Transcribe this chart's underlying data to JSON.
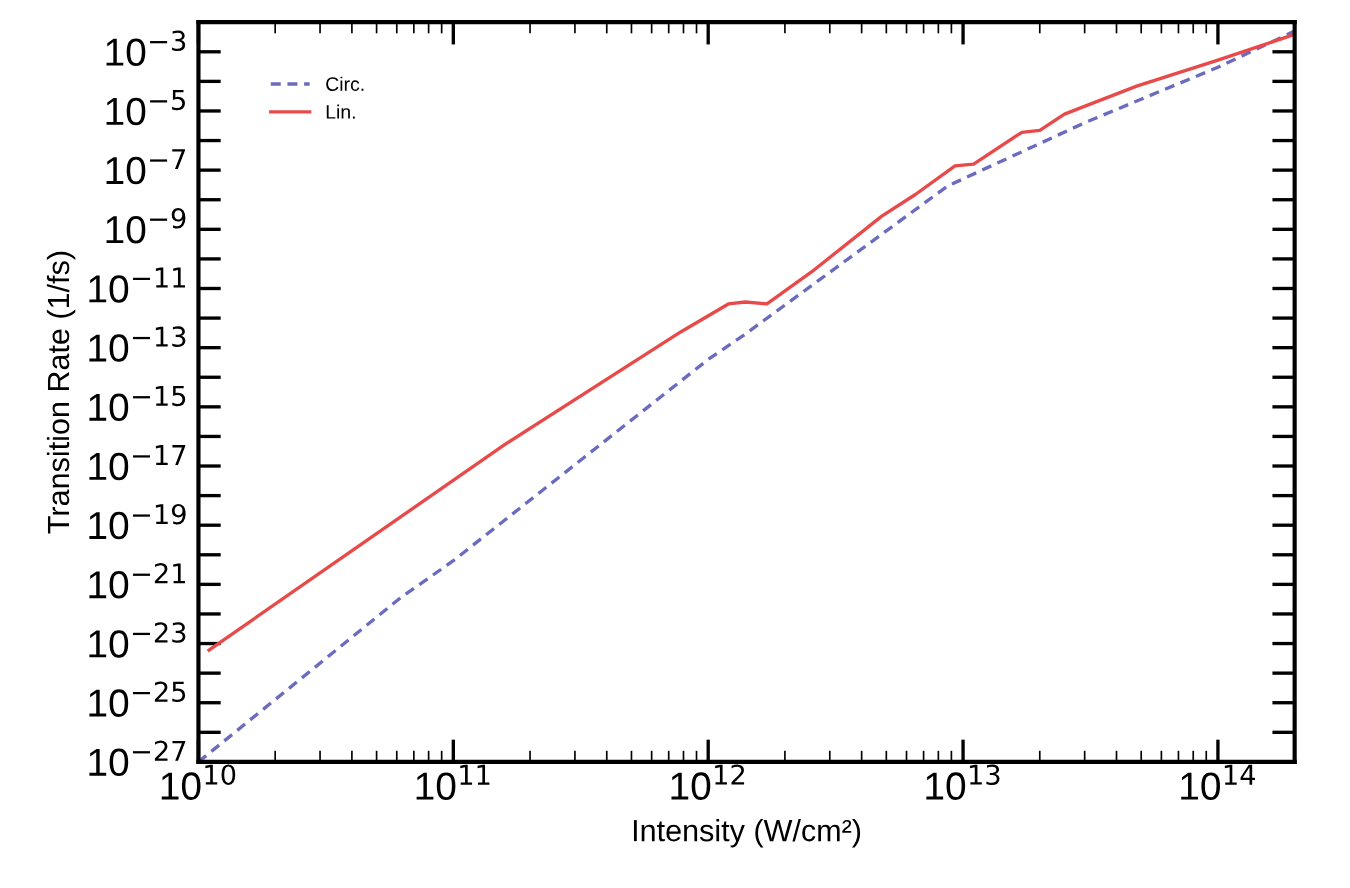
{
  "chart_data": {
    "type": "line",
    "xlabel": "Intensity (W/cm²)",
    "ylabel": "Transition Rate (1/fs)",
    "log": "xy",
    "grid": false,
    "legend": "top left",
    "marker": "none",
    "xlim": [
      10000000000.0,
      200000000000000.0
    ],
    "ylim": [
      1e-27,
      0.01
    ],
    "xticks": [
      {
        "value": 10000000000.0,
        "label": "10$^{10}$"
      },
      {
        "value": 100000000000.0,
        "label": "10$^{11}$"
      },
      {
        "value": 1000000000000.0,
        "label": "10$^{12}$"
      },
      {
        "value": 10000000000000.0,
        "label": "10$^{13}$"
      },
      {
        "value": 100000000000000.0,
        "label": "10$^{14}$"
      }
    ],
    "yticks": [
      {
        "value": 1e-27,
        "label": "10$^{−27}$"
      },
      {
        "value": 1e-26,
        "label": null
      },
      {
        "value": 1e-25,
        "label": "10$^{−25}$"
      },
      {
        "value": 1e-24,
        "label": null
      },
      {
        "value": 1e-23,
        "label": "10$^{−23}$"
      },
      {
        "value": 1e-22,
        "label": null
      },
      {
        "value": 1e-21,
        "label": "10$^{−21}$"
      },
      {
        "value": 1e-20,
        "label": null
      },
      {
        "value": 1e-19,
        "label": "10$^{−19}$"
      },
      {
        "value": 1e-18,
        "label": null
      },
      {
        "value": 1e-17,
        "label": "10$^{−17}$"
      },
      {
        "value": 1e-16,
        "label": null
      },
      {
        "value": 1e-15,
        "label": "10$^{−15}$"
      },
      {
        "value": 1e-14,
        "label": null
      },
      {
        "value": 1e-13,
        "label": "10$^{−13}$"
      },
      {
        "value": 1e-12,
        "label": null
      },
      {
        "value": 1e-11,
        "label": "10$^{−11}$"
      },
      {
        "value": 1e-10,
        "label": null
      },
      {
        "value": 1e-09,
        "label": "10$^{−9}$"
      },
      {
        "value": 1e-08,
        "label": null
      },
      {
        "value": 1e-07,
        "label": "10$^{−7}$"
      },
      {
        "value": 1e-06,
        "label": null
      },
      {
        "value": 1e-05,
        "label": "10$^{−5}$"
      },
      {
        "value": 0.0001,
        "label": null
      },
      {
        "value": 0.001,
        "label": "10$^{−3}$"
      },
      {
        "value": 0.01,
        "label": null
      }
    ],
    "series": [
      {
        "name": "Circ.",
        "color": "#6b6bc0",
        "line_style": "dashed",
        "x": [
          10000000000.0,
          62000000000.0,
          100000000000.0,
          1000000000000.0,
          1400000000000.0,
          8700000000000.0,
          30000000000000.0,
          100000000000000.0,
          200000000000000.0
        ],
        "values": [
          1e-27,
          3.5e-22,
          6.3e-21,
          4e-14,
          2.9e-13,
          2.9e-08,
          4e-06,
          0.0003,
          0.005
        ]
      },
      {
        "name": "Lin.",
        "color": "#e84a4a",
        "line_style": "solid",
        "x": [
          11000000000.0,
          160000000000.0,
          780000000000.0,
          1200000000000.0,
          1400000000000.0,
          1700000000000.0,
          2600000000000.0,
          4800000000000.0,
          6500000000000.0,
          9300000000000.0,
          11000000000000.0,
          17000000000000.0,
          20000000000000.0,
          25000000000000.0,
          48000000000000.0,
          100000000000000.0,
          200000000000000.0
        ],
        "values": [
          6e-24,
          5.5e-17,
          3.4e-13,
          3e-12,
          3.5e-12,
          3e-12,
          4.2e-11,
          2.8e-09,
          1.5e-08,
          1.4e-07,
          1.6e-07,
          1.9e-06,
          2.2e-06,
          7.8e-06,
          6.9e-05,
          0.00052,
          0.0039
        ]
      }
    ]
  }
}
